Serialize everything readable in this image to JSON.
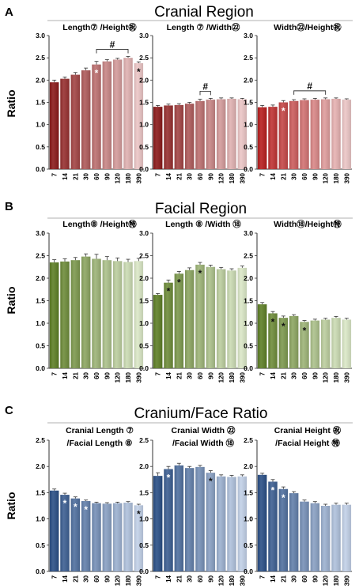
{
  "figure": {
    "sections": [
      {
        "letter": "A",
        "title": "Cranial Region"
      },
      {
        "letter": "B",
        "title": "Facial Region"
      },
      {
        "letter": "C",
        "title": "Cranium/Face Ratio"
      }
    ],
    "ylabel": "Ratio"
  },
  "chart_data": [
    {
      "type": "bar",
      "section": 0,
      "title_lines": [
        "Length⑦ /Height㊗"
      ],
      "categories": [
        "7",
        "14",
        "21",
        "30",
        "60",
        "90",
        "120",
        "180",
        "390"
      ],
      "values": [
        1.95,
        2.03,
        2.12,
        2.22,
        2.35,
        2.42,
        2.46,
        2.5,
        2.38
      ],
      "errors": [
        0.05,
        0.04,
        0.05,
        0.05,
        0.07,
        0.04,
        0.03,
        0.03,
        0.03
      ],
      "ylim": [
        0,
        3
      ],
      "yticks": [
        0,
        0.5,
        1,
        1.5,
        2,
        2.5,
        3
      ],
      "tick_decimals": 1,
      "colors": {
        "dark": "#8b1a1a",
        "light": "#ecc6c6"
      },
      "markers": [
        {
          "index": 4,
          "symbol": "*",
          "color": "#ffffff",
          "pos": "in"
        },
        {
          "index": 8,
          "symbol": "*",
          "color": "#111111",
          "pos": "in"
        }
      ],
      "bracket": {
        "from": 4,
        "to": 7,
        "symbol": "#"
      }
    },
    {
      "type": "bar",
      "section": 0,
      "title_lines": [
        "Length ⑦ /Width㉒"
      ],
      "categories": [
        "7",
        "14",
        "21",
        "30",
        "60",
        "90",
        "120",
        "180",
        "390"
      ],
      "values": [
        1.4,
        1.43,
        1.44,
        1.47,
        1.53,
        1.56,
        1.57,
        1.58,
        1.57
      ],
      "errors": [
        0.03,
        0.03,
        0.03,
        0.03,
        0.04,
        0.03,
        0.03,
        0.02,
        0.02
      ],
      "ylim": [
        0,
        3
      ],
      "yticks": [
        0,
        0.5,
        1,
        1.5,
        2,
        2.5,
        3
      ],
      "tick_decimals": 1,
      "colors": {
        "dark": "#8b1a1a",
        "light": "#ecc6c6"
      },
      "markers": [],
      "bracket": {
        "from": 4,
        "to": 5,
        "symbol": "#"
      }
    },
    {
      "type": "bar",
      "section": 0,
      "title_lines": [
        "Width㉒/Height㊗"
      ],
      "categories": [
        "7",
        "14",
        "21",
        "30",
        "60",
        "90",
        "120",
        "180",
        "390"
      ],
      "values": [
        1.39,
        1.4,
        1.5,
        1.53,
        1.55,
        1.56,
        1.57,
        1.58,
        1.56
      ],
      "errors": [
        0.04,
        0.04,
        0.04,
        0.03,
        0.03,
        0.03,
        0.03,
        0.02,
        0.02
      ],
      "ylim": [
        0,
        3
      ],
      "yticks": [
        0,
        0.5,
        1,
        1.5,
        2,
        2.5,
        3
      ],
      "tick_decimals": 1,
      "colors": {
        "dark": "#b81e1e",
        "light": "#ecc6c6"
      },
      "markers": [
        {
          "index": 2,
          "symbol": "*",
          "color": "#ffffff",
          "pos": "in"
        }
      ],
      "bracket": {
        "from": 3,
        "to": 6,
        "symbol": "#"
      }
    },
    {
      "type": "bar",
      "section": 1,
      "title_lines": [
        "Length⑧ /Height㊕"
      ],
      "categories": [
        "7",
        "14",
        "21",
        "30",
        "60",
        "90",
        "120",
        "180",
        "390"
      ],
      "values": [
        2.35,
        2.37,
        2.4,
        2.48,
        2.43,
        2.4,
        2.38,
        2.36,
        2.38
      ],
      "errors": [
        0.06,
        0.06,
        0.06,
        0.06,
        0.1,
        0.08,
        0.07,
        0.06,
        0.06
      ],
      "ylim": [
        0,
        3
      ],
      "yticks": [
        0,
        0.5,
        1,
        1.5,
        2,
        2.5,
        3
      ],
      "tick_decimals": 1,
      "colors": {
        "dark": "#5e7f26",
        "light": "#dbe8c7"
      },
      "markers": [],
      "bracket": null
    },
    {
      "type": "bar",
      "section": 1,
      "title_lines": [
        "Length ⑧ /Width ⑱"
      ],
      "categories": [
        "7",
        "14",
        "21",
        "30",
        "60",
        "90",
        "120",
        "180",
        "390"
      ],
      "values": [
        1.63,
        1.9,
        2.1,
        2.18,
        2.3,
        2.25,
        2.2,
        2.17,
        2.23
      ],
      "errors": [
        0.03,
        0.06,
        0.05,
        0.05,
        0.05,
        0.04,
        0.04,
        0.04,
        0.04
      ],
      "ylim": [
        0,
        3
      ],
      "yticks": [
        0,
        0.5,
        1,
        1.5,
        2,
        2.5,
        3
      ],
      "tick_decimals": 1,
      "colors": {
        "dark": "#5e7f26",
        "light": "#dbe8c7"
      },
      "markers": [
        {
          "index": 1,
          "symbol": "*",
          "color": "#111111",
          "pos": "in"
        },
        {
          "index": 2,
          "symbol": "*",
          "color": "#111111",
          "pos": "in"
        },
        {
          "index": 4,
          "symbol": "*",
          "color": "#111111",
          "pos": "in"
        }
      ],
      "bracket": null
    },
    {
      "type": "bar",
      "section": 1,
      "title_lines": [
        "Width⑱/Height㊕"
      ],
      "categories": [
        "7",
        "14",
        "21",
        "30",
        "60",
        "90",
        "120",
        "180",
        "390"
      ],
      "values": [
        1.42,
        1.22,
        1.12,
        1.16,
        1.03,
        1.06,
        1.08,
        1.12,
        1.08
      ],
      "errors": [
        0.04,
        0.04,
        0.04,
        0.03,
        0.03,
        0.03,
        0.03,
        0.03,
        0.03
      ],
      "ylim": [
        0,
        3
      ],
      "yticks": [
        0,
        0.5,
        1,
        1.5,
        2,
        2.5,
        3
      ],
      "tick_decimals": 1,
      "colors": {
        "dark": "#5e7f26",
        "light": "#dbe8c7"
      },
      "markers": [
        {
          "index": 1,
          "symbol": "*",
          "color": "#111111",
          "pos": "in"
        },
        {
          "index": 2,
          "symbol": "*",
          "color": "#111111",
          "pos": "in"
        },
        {
          "index": 4,
          "symbol": "*",
          "color": "#111111",
          "pos": "in"
        }
      ],
      "bracket": null
    },
    {
      "type": "bar",
      "section": 2,
      "title_lines": [
        "Cranial Length ⑦",
        "/Facial Length ⑧"
      ],
      "categories": [
        "7",
        "14",
        "21",
        "30",
        "60",
        "90",
        "120",
        "180",
        "390"
      ],
      "values": [
        1.54,
        1.46,
        1.39,
        1.34,
        1.3,
        1.29,
        1.3,
        1.31,
        1.26
      ],
      "errors": [
        0.03,
        0.03,
        0.03,
        0.02,
        0.02,
        0.02,
        0.02,
        0.02,
        0.02
      ],
      "ylim": [
        0,
        2.5
      ],
      "yticks": [
        0,
        0.5,
        1,
        1.5,
        2,
        2.5
      ],
      "tick_decimals": 1,
      "colors": {
        "dark": "#2a4f86",
        "light": "#c2d1e8"
      },
      "markers": [
        {
          "index": 1,
          "symbol": "*",
          "color": "#ffffff",
          "pos": "in"
        },
        {
          "index": 2,
          "symbol": "*",
          "color": "#ffffff",
          "pos": "in"
        },
        {
          "index": 3,
          "symbol": "*",
          "color": "#ffffff",
          "pos": "in"
        },
        {
          "index": 8,
          "symbol": "*",
          "color": "#111111",
          "pos": "in"
        }
      ],
      "bracket": null
    },
    {
      "type": "bar",
      "section": 2,
      "title_lines": [
        "Cranial Width ㉒",
        "/Facial Width ⑱"
      ],
      "categories": [
        "7",
        "14",
        "21",
        "30",
        "60",
        "90",
        "120",
        "180",
        "390"
      ],
      "values": [
        1.82,
        1.95,
        2.02,
        1.97,
        1.99,
        1.88,
        1.81,
        1.8,
        1.81
      ],
      "errors": [
        0.06,
        0.05,
        0.04,
        0.03,
        0.03,
        0.04,
        0.03,
        0.03,
        0.03
      ],
      "ylim": [
        0,
        2.5
      ],
      "yticks": [
        0,
        0.5,
        1,
        1.5,
        2,
        2.5
      ],
      "tick_decimals": 1,
      "colors": {
        "dark": "#2a4f86",
        "light": "#c2d1e8"
      },
      "markers": [
        {
          "index": 1,
          "symbol": "*",
          "color": "#ffffff",
          "pos": "in"
        },
        {
          "index": 5,
          "symbol": "*",
          "color": "#111111",
          "pos": "in"
        }
      ],
      "bracket": null
    },
    {
      "type": "bar",
      "section": 2,
      "title_lines": [
        "Cranial Height ㊗",
        "/Facial Height ㊕"
      ],
      "categories": [
        "7",
        "14",
        "21",
        "30",
        "60",
        "90",
        "120",
        "180",
        "390"
      ],
      "values": [
        1.84,
        1.71,
        1.57,
        1.49,
        1.33,
        1.3,
        1.25,
        1.27,
        1.27
      ],
      "errors": [
        0.03,
        0.04,
        0.04,
        0.03,
        0.03,
        0.03,
        0.03,
        0.03,
        0.03
      ],
      "ylim": [
        0,
        2.5
      ],
      "yticks": [
        0,
        0.5,
        1,
        1.5,
        2,
        2.5
      ],
      "tick_decimals": 1,
      "colors": {
        "dark": "#2a4f86",
        "light": "#c2d1e8"
      },
      "markers": [
        {
          "index": 1,
          "symbol": "*",
          "color": "#ffffff",
          "pos": "in"
        },
        {
          "index": 2,
          "symbol": "*",
          "color": "#ffffff",
          "pos": "in"
        }
      ],
      "bracket": null
    }
  ]
}
